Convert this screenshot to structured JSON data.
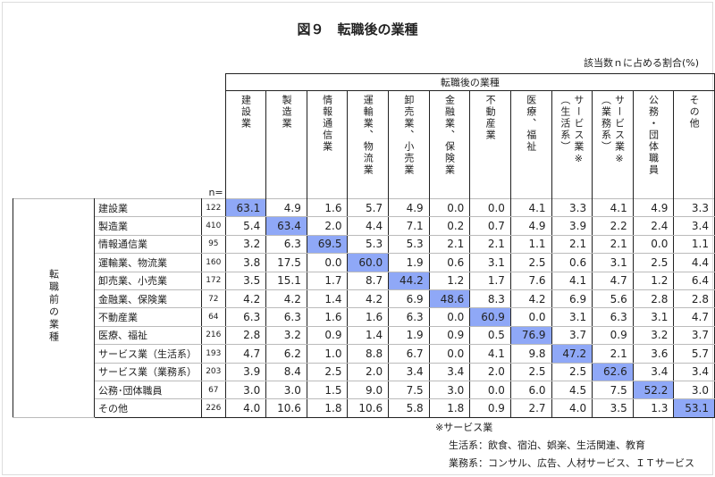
{
  "title": "図９　転職後の業種",
  "unit": "該当数ｎに占める割合(%)",
  "header_group": "転職後の業種",
  "row_group": "転職前の業種",
  "n_label": "n=",
  "highlight_color": "#8fa8f7",
  "chart_data": {
    "type": "table",
    "columns": [
      {
        "l1": "建設業",
        "l2": ""
      },
      {
        "l1": "製造業",
        "l2": ""
      },
      {
        "l1": "情報通信業",
        "l2": ""
      },
      {
        "l1": "運輸業、物流業",
        "l2": ""
      },
      {
        "l1": "卸売業、小売業",
        "l2": ""
      },
      {
        "l1": "金融業、保険業",
        "l2": ""
      },
      {
        "l1": "不動産業",
        "l2": ""
      },
      {
        "l1": "医療、福祉",
        "l2": ""
      },
      {
        "l1": "サービス業※",
        "l2": "（生活系）"
      },
      {
        "l1": "サービス業※",
        "l2": "（業務系）"
      },
      {
        "l1": "公務・団体職員",
        "l2": ""
      },
      {
        "l1": "その他",
        "l2": ""
      }
    ],
    "rows": [
      {
        "label": "建設業",
        "n": "122",
        "values": [
          "63.1",
          "4.9",
          "1.6",
          "5.7",
          "4.9",
          "0.0",
          "0.0",
          "4.1",
          "3.3",
          "4.1",
          "4.9",
          "3.3"
        ]
      },
      {
        "label": "製造業",
        "n": "410",
        "values": [
          "5.4",
          "63.4",
          "2.0",
          "4.4",
          "7.1",
          "0.2",
          "0.7",
          "4.9",
          "3.9",
          "2.2",
          "2.4",
          "3.4"
        ]
      },
      {
        "label": "情報通信業",
        "n": "95",
        "values": [
          "3.2",
          "6.3",
          "69.5",
          "5.3",
          "5.3",
          "2.1",
          "2.1",
          "1.1",
          "2.1",
          "2.1",
          "0.0",
          "1.1"
        ]
      },
      {
        "label": "運輸業、物流業",
        "n": "160",
        "values": [
          "3.8",
          "17.5",
          "0.0",
          "60.0",
          "1.9",
          "0.6",
          "3.1",
          "2.5",
          "0.6",
          "3.1",
          "2.5",
          "4.4"
        ]
      },
      {
        "label": "卸売業、小売業",
        "n": "172",
        "values": [
          "3.5",
          "15.1",
          "1.7",
          "8.7",
          "44.2",
          "1.2",
          "1.7",
          "7.6",
          "4.1",
          "4.7",
          "1.2",
          "6.4"
        ]
      },
      {
        "label": "金融業、保険業",
        "n": "72",
        "values": [
          "4.2",
          "4.2",
          "1.4",
          "4.2",
          "6.9",
          "48.6",
          "8.3",
          "4.2",
          "6.9",
          "5.6",
          "2.8",
          "2.8"
        ]
      },
      {
        "label": "不動産業",
        "n": "64",
        "values": [
          "6.3",
          "6.3",
          "1.6",
          "1.6",
          "6.3",
          "0.0",
          "60.9",
          "0.0",
          "3.1",
          "6.3",
          "3.1",
          "4.7"
        ]
      },
      {
        "label": "医療、福祉",
        "n": "216",
        "values": [
          "2.8",
          "3.2",
          "0.9",
          "1.4",
          "1.9",
          "0.9",
          "0.5",
          "76.9",
          "3.7",
          "0.9",
          "3.2",
          "3.7"
        ]
      },
      {
        "label": "サービス業（生活系）",
        "n": "193",
        "values": [
          "4.7",
          "6.2",
          "1.0",
          "8.8",
          "6.7",
          "0.0",
          "4.1",
          "9.8",
          "47.2",
          "2.1",
          "3.6",
          "5.7"
        ]
      },
      {
        "label": "サービス業（業務系）",
        "n": "203",
        "values": [
          "3.9",
          "8.4",
          "2.5",
          "2.0",
          "3.4",
          "3.4",
          "2.0",
          "2.5",
          "2.5",
          "62.6",
          "3.4",
          "3.4"
        ]
      },
      {
        "label": "公務･団体職員",
        "n": "67",
        "values": [
          "3.0",
          "3.0",
          "1.5",
          "9.0",
          "7.5",
          "3.0",
          "0.0",
          "6.0",
          "4.5",
          "7.5",
          "52.2",
          "3.0"
        ]
      },
      {
        "label": "その他",
        "n": "226",
        "values": [
          "4.0",
          "10.6",
          "1.8",
          "10.6",
          "5.8",
          "1.8",
          "0.9",
          "2.7",
          "4.0",
          "3.5",
          "1.3",
          "53.1"
        ]
      }
    ]
  },
  "notes": {
    "head": "※サービス業",
    "line1": "生活系：飲食、宿泊、娯楽、生活関連、教育",
    "line2": "業務系：コンサル、広告、人材サービス、ＩＴサービス"
  }
}
